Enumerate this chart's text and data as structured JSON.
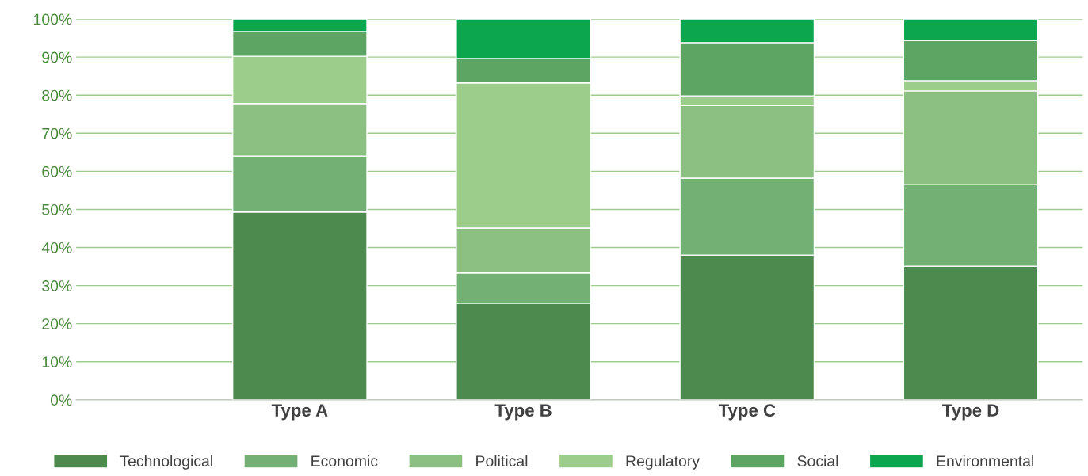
{
  "chart_data": {
    "type": "bar",
    "stacked": true,
    "categories": [
      "Type A",
      "Type B",
      "Type C",
      "Type D"
    ],
    "series": [
      {
        "name": "Technological",
        "color": "#4d8a4e",
        "values": [
          49.3,
          25.4,
          38.0,
          35.1
        ]
      },
      {
        "name": "Economic",
        "color": "#72b173",
        "values": [
          14.7,
          7.9,
          20.2,
          21.4
        ]
      },
      {
        "name": "Political",
        "color": "#8cc083",
        "values": [
          13.8,
          11.8,
          19.1,
          24.6
        ]
      },
      {
        "name": "Regulatory",
        "color": "#9ccd8b",
        "values": [
          12.4,
          38.1,
          2.5,
          2.7
        ]
      },
      {
        "name": "Social",
        "color": "#5ca563",
        "values": [
          6.5,
          6.4,
          14.0,
          10.6
        ]
      },
      {
        "name": "Environmental",
        "color": "#0ba64d",
        "values": [
          3.3,
          10.4,
          6.2,
          5.6
        ]
      }
    ],
    "ylim": [
      0,
      100
    ],
    "yticks": [
      {
        "value": 0,
        "label": "0%"
      },
      {
        "value": 10,
        "label": "10%"
      },
      {
        "value": 20,
        "label": "20%"
      },
      {
        "value": 30,
        "label": "30%"
      },
      {
        "value": 40,
        "label": "40%"
      },
      {
        "value": 50,
        "label": "50%"
      },
      {
        "value": 60,
        "label": "60%"
      },
      {
        "value": 70,
        "label": "70%"
      },
      {
        "value": 80,
        "label": "80%"
      },
      {
        "value": 90,
        "label": "90%"
      },
      {
        "value": 100,
        "label": "100%"
      }
    ],
    "grid": "y",
    "legend": "bottom"
  }
}
